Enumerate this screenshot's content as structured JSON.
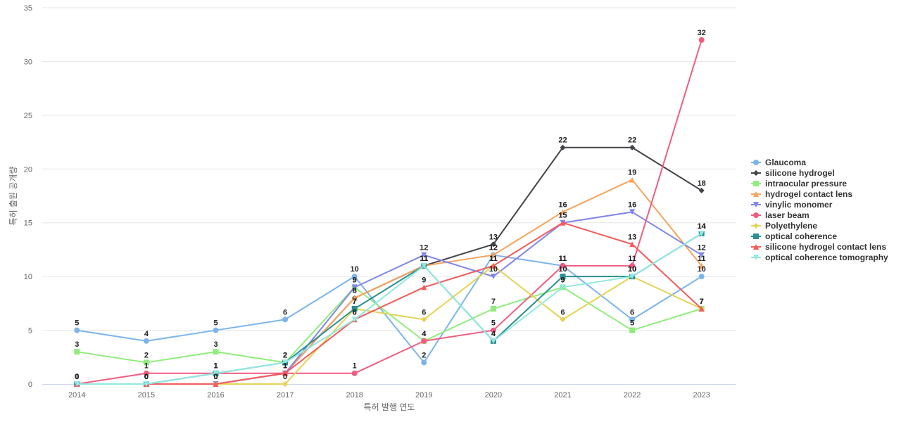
{
  "chart_data": {
    "type": "line",
    "xlabel": "특허 발행 연도",
    "ylabel": "특허 출원 공개량",
    "x": [
      "2014",
      "2015",
      "2016",
      "2017",
      "2018",
      "2019",
      "2020",
      "2021",
      "2022",
      "2023"
    ],
    "ylim": [
      0,
      35
    ],
    "yticks": [
      0,
      5,
      10,
      15,
      20,
      25,
      30,
      35
    ],
    "grid": true,
    "legend_position": "right",
    "series": [
      {
        "name": "Glaucoma",
        "color": "#7cb5ec",
        "marker": "circle",
        "values": [
          5,
          4,
          5,
          6,
          10,
          2,
          12,
          11,
          6,
          10
        ]
      },
      {
        "name": "silicone hydrogel",
        "color": "#434348",
        "marker": "diamond",
        "values": [
          0,
          0,
          0,
          1,
          8,
          11,
          13,
          22,
          22,
          18
        ]
      },
      {
        "name": "intraocular pressure",
        "color": "#90ed7d",
        "marker": "square",
        "values": [
          3,
          2,
          3,
          2,
          9,
          4,
          7,
          9,
          5,
          7
        ]
      },
      {
        "name": "hydrogel contact lens",
        "color": "#f7a35c",
        "marker": "triangle",
        "values": [
          0,
          0,
          0,
          1,
          8,
          11,
          12,
          16,
          19,
          11
        ]
      },
      {
        "name": "vinylic monomer",
        "color": "#8085e9",
        "marker": "triangle-down",
        "values": [
          0,
          0,
          0,
          1,
          9,
          12,
          10,
          15,
          16,
          12
        ]
      },
      {
        "name": "laser beam",
        "color": "#f15c80",
        "marker": "circle",
        "values": [
          0,
          1,
          1,
          1,
          1,
          4,
          5,
          11,
          11,
          32
        ]
      },
      {
        "name": "Polyethylene",
        "color": "#e4d354",
        "marker": "diamond",
        "values": [
          0,
          0,
          0,
          0,
          7,
          6,
          11,
          6,
          10,
          7
        ]
      },
      {
        "name": "optical coherence",
        "color": "#2b908f",
        "marker": "square",
        "values": [
          0,
          0,
          1,
          2,
          7,
          11,
          4,
          10,
          10,
          14
        ]
      },
      {
        "name": "silicone hydrogel contact lens",
        "color": "#f45b5b",
        "marker": "triangle",
        "values": [
          0,
          0,
          0,
          1,
          6,
          9,
          11,
          15,
          13,
          7
        ]
      },
      {
        "name": "optical coherence tomography",
        "color": "#91e8e1",
        "marker": "triangle-down",
        "values": [
          0,
          0,
          1,
          2,
          6,
          11,
          4,
          9,
          10,
          14
        ]
      }
    ]
  }
}
